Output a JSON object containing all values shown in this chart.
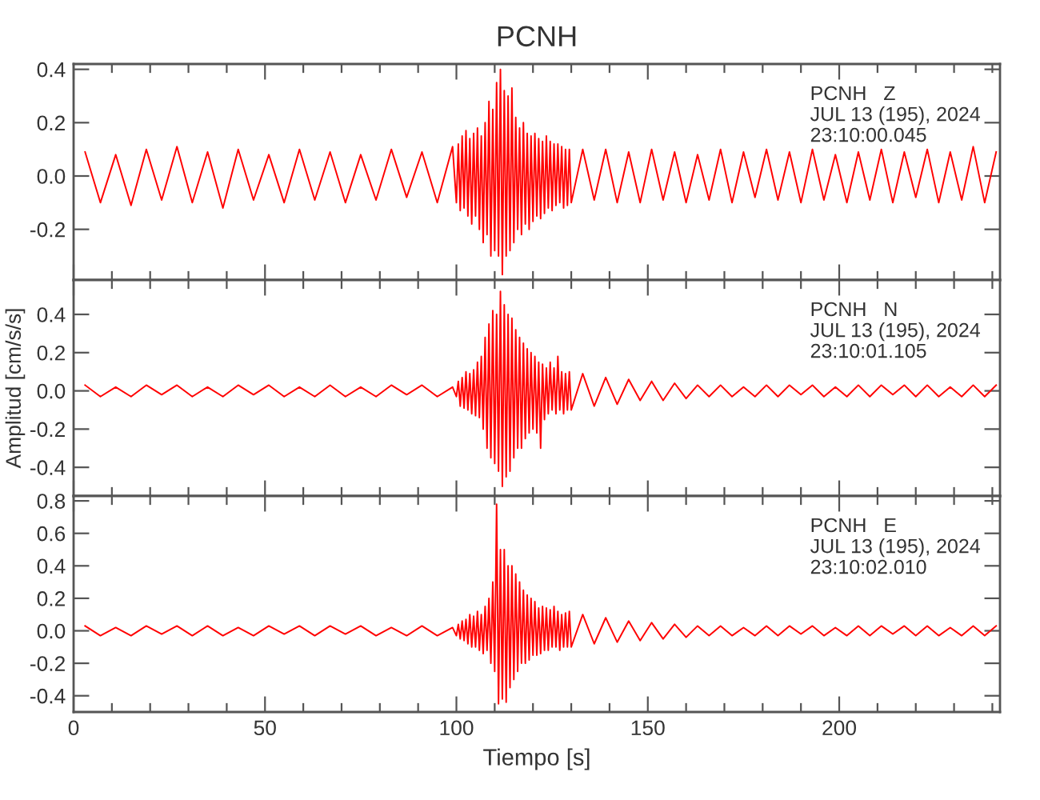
{
  "chart_data": [
    {
      "type": "line",
      "title": "PCNH",
      "tick_labels": "y",
      "grid": false,
      "legend": false,
      "xlim": [
        0,
        242
      ],
      "xticks": [
        0,
        {
          "value": 10,
          "label": null
        },
        {
          "value": 20,
          "label": null
        },
        {
          "value": 30,
          "label": null
        },
        {
          "value": 40,
          "label": null
        },
        50,
        {
          "value": 60,
          "label": null
        },
        {
          "value": 70,
          "label": null
        },
        {
          "value": 80,
          "label": null
        },
        {
          "value": 90,
          "label": null
        },
        100,
        {
          "value": 110,
          "label": null
        },
        {
          "value": 120,
          "label": null
        },
        {
          "value": 130,
          "label": null
        },
        {
          "value": 140,
          "label": null
        },
        150,
        {
          "value": 160,
          "label": null
        },
        {
          "value": 170,
          "label": null
        },
        {
          "value": 180,
          "label": null
        },
        {
          "value": 190,
          "label": null
        },
        200,
        {
          "value": 210,
          "label": null
        },
        {
          "value": 220,
          "label": null
        },
        {
          "value": 230,
          "label": null
        },
        {
          "value": 240,
          "label": null
        }
      ],
      "ylim": [
        -0.39,
        0.42
      ],
      "yticks": [
        {
          "value": -0.2,
          "label": "-0.2"
        },
        {
          "value": 0,
          "label": "0.0"
        },
        {
          "value": 0.2,
          "label": "0.2"
        },
        {
          "value": 0.4,
          "label": "0.4"
        }
      ],
      "annotations": [
        "PCNH   Z\nJUL 13 (195), 2024\n23:10:00.045"
      ],
      "x": [
        3,
        7,
        11,
        15,
        19,
        23,
        27,
        31,
        35,
        39,
        43,
        47,
        51,
        55,
        59,
        63,
        67,
        71,
        75,
        79,
        83,
        87,
        91,
        95,
        99,
        100,
        100.5,
        101,
        101.5,
        102,
        102.5,
        103,
        103.5,
        104,
        104.5,
        105,
        105.5,
        106,
        106.5,
        107,
        107.5,
        108,
        108.5,
        109,
        109.5,
        110,
        110.5,
        111,
        111.5,
        112,
        112.5,
        113,
        113.5,
        114,
        114.5,
        115,
        115.5,
        116,
        116.5,
        117,
        117.5,
        118,
        118.5,
        119,
        119.5,
        120,
        120.5,
        121,
        121.5,
        122,
        122.5,
        123,
        123.5,
        124,
        124.5,
        125,
        125.5,
        126,
        126.5,
        127,
        127.5,
        128,
        128.5,
        129,
        129.5,
        130,
        133,
        136,
        139,
        142,
        145,
        148,
        151,
        154,
        157,
        160,
        163,
        166,
        169,
        172,
        175,
        178,
        181,
        184,
        187,
        190,
        193,
        196,
        199,
        202,
        205,
        208,
        211,
        214,
        217,
        220,
        223,
        226,
        229,
        232,
        235,
        238,
        241
      ],
      "series": [
        {
          "color": "#ff0000",
          "values": [
            0.09,
            -0.1,
            0.08,
            -0.11,
            0.1,
            -0.09,
            0.11,
            -0.1,
            0.09,
            -0.12,
            0.1,
            -0.09,
            0.08,
            -0.1,
            0.1,
            -0.09,
            0.09,
            -0.1,
            0.08,
            -0.09,
            0.1,
            -0.08,
            0.09,
            -0.1,
            0.11,
            -0.1,
            0.12,
            -0.13,
            0.15,
            -0.12,
            0.17,
            -0.15,
            0.14,
            -0.18,
            0.16,
            -0.15,
            0.18,
            -0.2,
            0.15,
            -0.25,
            0.2,
            -0.22,
            0.28,
            -0.3,
            0.25,
            -0.28,
            0.35,
            -0.3,
            0.4,
            -0.37,
            0.32,
            -0.3,
            0.3,
            -0.28,
            0.33,
            -0.25,
            0.22,
            -0.2,
            0.18,
            -0.22,
            0.2,
            -0.18,
            0.16,
            -0.2,
            0.15,
            -0.17,
            0.16,
            -0.15,
            0.14,
            -0.16,
            0.13,
            -0.14,
            0.15,
            -0.12,
            0.13,
            -0.13,
            0.12,
            -0.11,
            0.12,
            -0.1,
            0.11,
            -0.12,
            0.1,
            -0.11,
            0.1,
            -0.1,
            0.1,
            -0.09,
            0.1,
            -0.1,
            0.09,
            -0.1,
            0.1,
            -0.09,
            0.09,
            -0.1,
            0.08,
            -0.09,
            0.1,
            -0.1,
            0.09,
            -0.08,
            0.1,
            -0.09,
            0.09,
            -0.1,
            0.1,
            -0.09,
            0.08,
            -0.1,
            0.09,
            -0.09,
            0.1,
            -0.1,
            0.09,
            -0.08,
            0.1,
            -0.1,
            0.09,
            -0.09,
            0.11,
            -0.1,
            0.09
          ]
        }
      ]
    },
    {
      "type": "line",
      "ylabel": "Amplitud [cm/s/s]",
      "tick_labels": "y",
      "grid": false,
      "legend": false,
      "xlim": [
        0,
        242
      ],
      "xticks": [
        0,
        {
          "value": 10,
          "label": null
        },
        {
          "value": 20,
          "label": null
        },
        {
          "value": 30,
          "label": null
        },
        {
          "value": 40,
          "label": null
        },
        50,
        {
          "value": 60,
          "label": null
        },
        {
          "value": 70,
          "label": null
        },
        {
          "value": 80,
          "label": null
        },
        {
          "value": 90,
          "label": null
        },
        100,
        {
          "value": 110,
          "label": null
        },
        {
          "value": 120,
          "label": null
        },
        {
          "value": 130,
          "label": null
        },
        {
          "value": 140,
          "label": null
        },
        150,
        {
          "value": 160,
          "label": null
        },
        {
          "value": 170,
          "label": null
        },
        {
          "value": 180,
          "label": null
        },
        {
          "value": 190,
          "label": null
        },
        200,
        {
          "value": 210,
          "label": null
        },
        {
          "value": 220,
          "label": null
        },
        {
          "value": 230,
          "label": null
        },
        {
          "value": 240,
          "label": null
        }
      ],
      "ylim": [
        -0.55,
        0.58
      ],
      "yticks": [
        {
          "value": -0.4,
          "label": "-0.4"
        },
        {
          "value": -0.2,
          "label": "-0.2"
        },
        {
          "value": 0,
          "label": "0.0"
        },
        {
          "value": 0.2,
          "label": "0.2"
        },
        {
          "value": 0.4,
          "label": "0.4"
        }
      ],
      "annotations": [
        "PCNH   N\nJUL 13 (195), 2024\n23:10:01.105"
      ],
      "x": [
        3,
        7,
        11,
        15,
        19,
        23,
        27,
        31,
        35,
        39,
        43,
        47,
        51,
        55,
        59,
        63,
        67,
        71,
        75,
        79,
        83,
        87,
        91,
        95,
        99,
        100,
        100.5,
        101,
        101.5,
        102,
        102.5,
        103,
        103.5,
        104,
        104.5,
        105,
        105.5,
        106,
        106.5,
        107,
        107.5,
        108,
        108.5,
        109,
        109.5,
        110,
        110.5,
        111,
        111.5,
        112,
        112.5,
        113,
        113.5,
        114,
        114.5,
        115,
        115.5,
        116,
        116.5,
        117,
        117.5,
        118,
        118.5,
        119,
        119.5,
        120,
        120.5,
        121,
        121.5,
        122,
        122.5,
        123,
        123.5,
        124,
        124.5,
        125,
        125.5,
        126,
        126.5,
        127,
        127.5,
        128,
        128.5,
        129,
        129.5,
        130,
        133,
        136,
        139,
        142,
        145,
        148,
        151,
        154,
        157,
        160,
        163,
        166,
        169,
        172,
        175,
        178,
        181,
        184,
        187,
        190,
        193,
        196,
        199,
        202,
        205,
        208,
        211,
        214,
        217,
        220,
        223,
        226,
        229,
        232,
        235,
        238,
        241
      ],
      "series": [
        {
          "color": "#ff0000",
          "values": [
            0.03,
            -0.03,
            0.02,
            -0.03,
            0.03,
            -0.02,
            0.03,
            -0.03,
            0.02,
            -0.03,
            0.03,
            -0.02,
            0.03,
            -0.03,
            0.02,
            -0.03,
            0.03,
            -0.03,
            0.02,
            -0.03,
            0.03,
            -0.02,
            0.03,
            -0.03,
            0.02,
            -0.03,
            0.05,
            -0.08,
            0.07,
            -0.09,
            0.1,
            -0.1,
            0.09,
            -0.12,
            0.11,
            -0.13,
            0.15,
            -0.14,
            0.18,
            -0.2,
            0.28,
            -0.3,
            0.35,
            -0.35,
            0.42,
            -0.38,
            0.4,
            -0.42,
            0.52,
            -0.5,
            0.45,
            -0.45,
            0.4,
            -0.42,
            0.38,
            -0.35,
            0.32,
            -0.3,
            0.28,
            -0.3,
            0.25,
            -0.25,
            0.22,
            -0.22,
            0.2,
            -0.2,
            0.18,
            -0.22,
            0.15,
            -0.3,
            0.14,
            -0.15,
            0.12,
            -0.12,
            0.15,
            -0.1,
            0.12,
            -0.12,
            0.18,
            -0.1,
            0.1,
            -0.12,
            0.09,
            -0.1,
            0.1,
            -0.1,
            0.09,
            -0.08,
            0.07,
            -0.07,
            0.06,
            -0.05,
            0.05,
            -0.05,
            0.04,
            -0.04,
            0.03,
            -0.03,
            0.03,
            -0.03,
            0.02,
            -0.03,
            0.03,
            -0.03,
            0.03,
            -0.02,
            0.03,
            -0.03,
            0.02,
            -0.03,
            0.03,
            -0.03,
            0.03,
            -0.02,
            0.03,
            -0.03,
            0.03,
            -0.03,
            0.02,
            -0.03,
            0.03,
            -0.03,
            0.03
          ]
        }
      ]
    },
    {
      "type": "line",
      "xlabel": "Tiempo [s]",
      "grid": false,
      "legend": false,
      "xlim": [
        0,
        242
      ],
      "xticks": [
        0,
        {
          "value": 10,
          "label": null
        },
        {
          "value": 20,
          "label": null
        },
        {
          "value": 30,
          "label": null
        },
        {
          "value": 40,
          "label": null
        },
        50,
        {
          "value": 60,
          "label": null
        },
        {
          "value": 70,
          "label": null
        },
        {
          "value": 80,
          "label": null
        },
        {
          "value": 90,
          "label": null
        },
        100,
        {
          "value": 110,
          "label": null
        },
        {
          "value": 120,
          "label": null
        },
        {
          "value": 130,
          "label": null
        },
        {
          "value": 140,
          "label": null
        },
        150,
        {
          "value": 160,
          "label": null
        },
        {
          "value": 170,
          "label": null
        },
        {
          "value": 180,
          "label": null
        },
        {
          "value": 190,
          "label": null
        },
        200,
        {
          "value": 210,
          "label": null
        },
        {
          "value": 220,
          "label": null
        },
        {
          "value": 230,
          "label": null
        },
        {
          "value": 240,
          "label": null
        }
      ],
      "ylim": [
        -0.5,
        0.83
      ],
      "yticks": [
        {
          "value": -0.4,
          "label": "-0.4"
        },
        {
          "value": -0.2,
          "label": "-0.2"
        },
        {
          "value": 0,
          "label": "0.0"
        },
        {
          "value": 0.2,
          "label": "0.2"
        },
        {
          "value": 0.4,
          "label": "0.4"
        },
        {
          "value": 0.6,
          "label": "0.6"
        },
        {
          "value": 0.8,
          "label": "0.8"
        }
      ],
      "annotations": [
        "PCNH   E\nJUL 13 (195), 2024\n23:10:02.010"
      ],
      "x": [
        3,
        7,
        11,
        15,
        19,
        23,
        27,
        31,
        35,
        39,
        43,
        47,
        51,
        55,
        59,
        63,
        67,
        71,
        75,
        79,
        83,
        87,
        91,
        95,
        99,
        100,
        100.5,
        101,
        101.5,
        102,
        102.5,
        103,
        103.5,
        104,
        104.5,
        105,
        105.5,
        106,
        106.5,
        107,
        107.5,
        108,
        108.5,
        109,
        109.5,
        110,
        110.5,
        111,
        111.5,
        112,
        112.5,
        113,
        113.5,
        114,
        114.5,
        115,
        115.5,
        116,
        116.5,
        117,
        117.5,
        118,
        118.5,
        119,
        119.5,
        120,
        120.5,
        121,
        121.5,
        122,
        122.5,
        123,
        123.5,
        124,
        124.5,
        125,
        125.5,
        126,
        126.5,
        127,
        127.5,
        128,
        128.5,
        129,
        129.5,
        130,
        133,
        136,
        139,
        142,
        145,
        148,
        151,
        154,
        157,
        160,
        163,
        166,
        169,
        172,
        175,
        178,
        181,
        184,
        187,
        190,
        193,
        196,
        199,
        202,
        205,
        208,
        211,
        214,
        217,
        220,
        223,
        226,
        229,
        232,
        235,
        238,
        241
      ],
      "series": [
        {
          "color": "#ff0000",
          "values": [
            0.03,
            -0.03,
            0.02,
            -0.03,
            0.03,
            -0.02,
            0.03,
            -0.03,
            0.03,
            -0.03,
            0.02,
            -0.03,
            0.03,
            -0.02,
            0.03,
            -0.03,
            0.03,
            -0.02,
            0.03,
            -0.03,
            0.02,
            -0.03,
            0.03,
            -0.03,
            0.02,
            -0.03,
            0.04,
            -0.05,
            0.06,
            -0.06,
            0.07,
            -0.08,
            0.1,
            -0.1,
            0.09,
            -0.1,
            0.12,
            -0.12,
            0.1,
            -0.14,
            0.15,
            -0.12,
            0.2,
            -0.2,
            0.3,
            -0.25,
            0.78,
            -0.45,
            0.5,
            -0.42,
            0.5,
            -0.44,
            0.4,
            -0.35,
            0.4,
            -0.3,
            0.35,
            -0.25,
            0.3,
            -0.2,
            0.25,
            -0.2,
            0.22,
            -0.18,
            0.2,
            -0.15,
            0.18,
            -0.15,
            0.14,
            -0.14,
            0.15,
            -0.12,
            0.14,
            -0.12,
            0.13,
            -0.1,
            0.15,
            -0.1,
            0.12,
            -0.12,
            0.1,
            -0.1,
            0.11,
            -0.1,
            0.12,
            -0.1,
            0.1,
            -0.08,
            0.08,
            -0.07,
            0.06,
            -0.06,
            0.05,
            -0.05,
            0.04,
            -0.04,
            0.03,
            -0.03,
            0.03,
            -0.03,
            0.02,
            -0.03,
            0.03,
            -0.03,
            0.03,
            -0.02,
            0.03,
            -0.03,
            0.02,
            -0.03,
            0.03,
            -0.03,
            0.03,
            -0.02,
            0.03,
            -0.03,
            0.03,
            -0.03,
            0.02,
            -0.03,
            0.03,
            -0.03,
            0.03
          ]
        }
      ]
    }
  ]
}
